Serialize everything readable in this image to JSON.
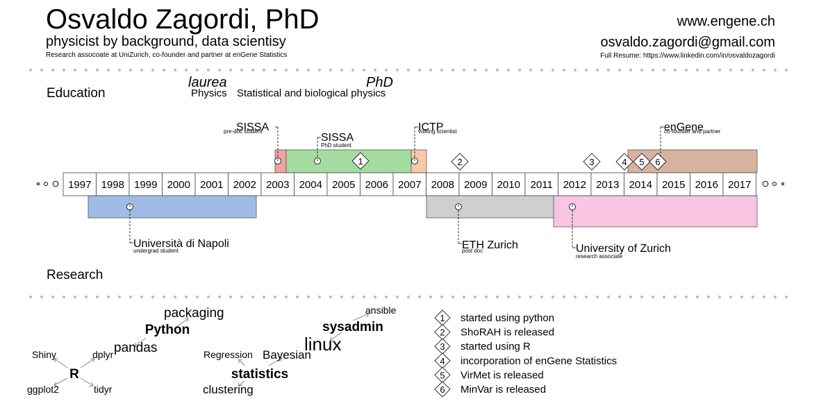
{
  "header": {
    "name": "Osvaldo Zagordi, PhD",
    "subtitle": "physicist by background, data scientisy",
    "tagline": "Research assocoate at UniZurich, co-founder and partner at enGene Statistics",
    "website": "www.engene.ch",
    "email": "osvaldo.zagordi@gmail.com",
    "resume": "Full Resume: https://www.linkedin.com/in/osvaldozagordi"
  },
  "sections": {
    "education": "Education",
    "research": "Research"
  },
  "degrees": [
    {
      "title": "laurea",
      "subject": "Physics"
    },
    {
      "title": "PhD",
      "subject": "Statistical and biological physics"
    }
  ],
  "timeline": {
    "years": [
      "1997",
      "1998",
      "1999",
      "2000",
      "2001",
      "2002",
      "2003",
      "2004",
      "2005",
      "2006",
      "2007",
      "2008",
      "2009",
      "2010",
      "2011",
      "2012",
      "2013",
      "2014",
      "2015",
      "2016",
      "2017"
    ],
    "above": [
      {
        "name": "SISSA",
        "role": "pre-doc student",
        "color": "#f3a0a0"
      },
      {
        "name": "SISSA",
        "role": "PhD student",
        "color": "#a3dca0"
      },
      {
        "name": "ICTP",
        "role": "visiting scientist",
        "color": "#f8c9a8"
      },
      {
        "name": "enGene",
        "role": "co-founder and partner",
        "color": "#d6b39e"
      }
    ],
    "below": [
      {
        "name": "Università di Napoli",
        "role": "undergrad student",
        "color": "#a0bce6"
      },
      {
        "name": "ETH Zurich",
        "role": "post doc",
        "color": "#cfcfcf"
      },
      {
        "name": "University of Zurich",
        "role": "research associate",
        "color": "#f8c2e0"
      }
    ],
    "markers": [
      "1",
      "2",
      "3",
      "4",
      "5",
      "6"
    ]
  },
  "legend": [
    {
      "num": "1",
      "text": "started using python"
    },
    {
      "num": "2",
      "text": "ShoRAH is released"
    },
    {
      "num": "3",
      "text": "started using R"
    },
    {
      "num": "4",
      "text": "incorporation of enGene Statistics"
    },
    {
      "num": "5",
      "text": "VirMet is released"
    },
    {
      "num": "6",
      "text": "MinVar is released"
    }
  ],
  "skills": {
    "python": {
      "center": "Python",
      "children": [
        "packaging",
        "pandas"
      ]
    },
    "r": {
      "center": "R",
      "children": [
        "Shiny",
        "dplyr",
        "ggplot2",
        "tidyr"
      ]
    },
    "statistics": {
      "center": "statistics",
      "children": [
        "Regression",
        "Bayesian",
        "clustering"
      ]
    },
    "sysadmin": {
      "center": "sysadmin",
      "children": [
        "ansible",
        "linux"
      ]
    }
  }
}
